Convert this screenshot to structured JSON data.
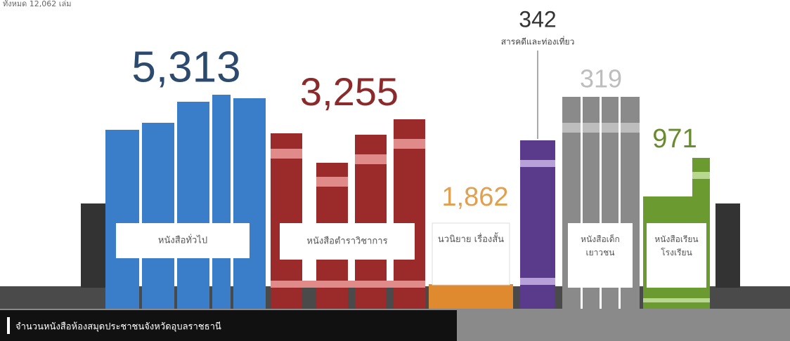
{
  "header": {
    "title": "ทั้งหมด 12,062 เล่ม"
  },
  "items": [
    {
      "value": "5,313",
      "label": "หนังสือทั่วไป"
    },
    {
      "value": "3,255",
      "label": "หนังสือตำราวิชาการ"
    },
    {
      "value": "1,862",
      "label": "นวนิยาย เรื่องสั้น"
    },
    {
      "value": "342",
      "label": "สารคดีและท่องเที่ยว"
    },
    {
      "value": "319",
      "label": "หนังสือเด็ก เยาวชน"
    },
    {
      "value": "971",
      "label": "หนังสือเรียน โรงเรียน"
    }
  ],
  "footer": {
    "caption": "จำนวนหนังสือห้องสมุดประชาชนจังหวัดอุบลราชธานี"
  }
}
